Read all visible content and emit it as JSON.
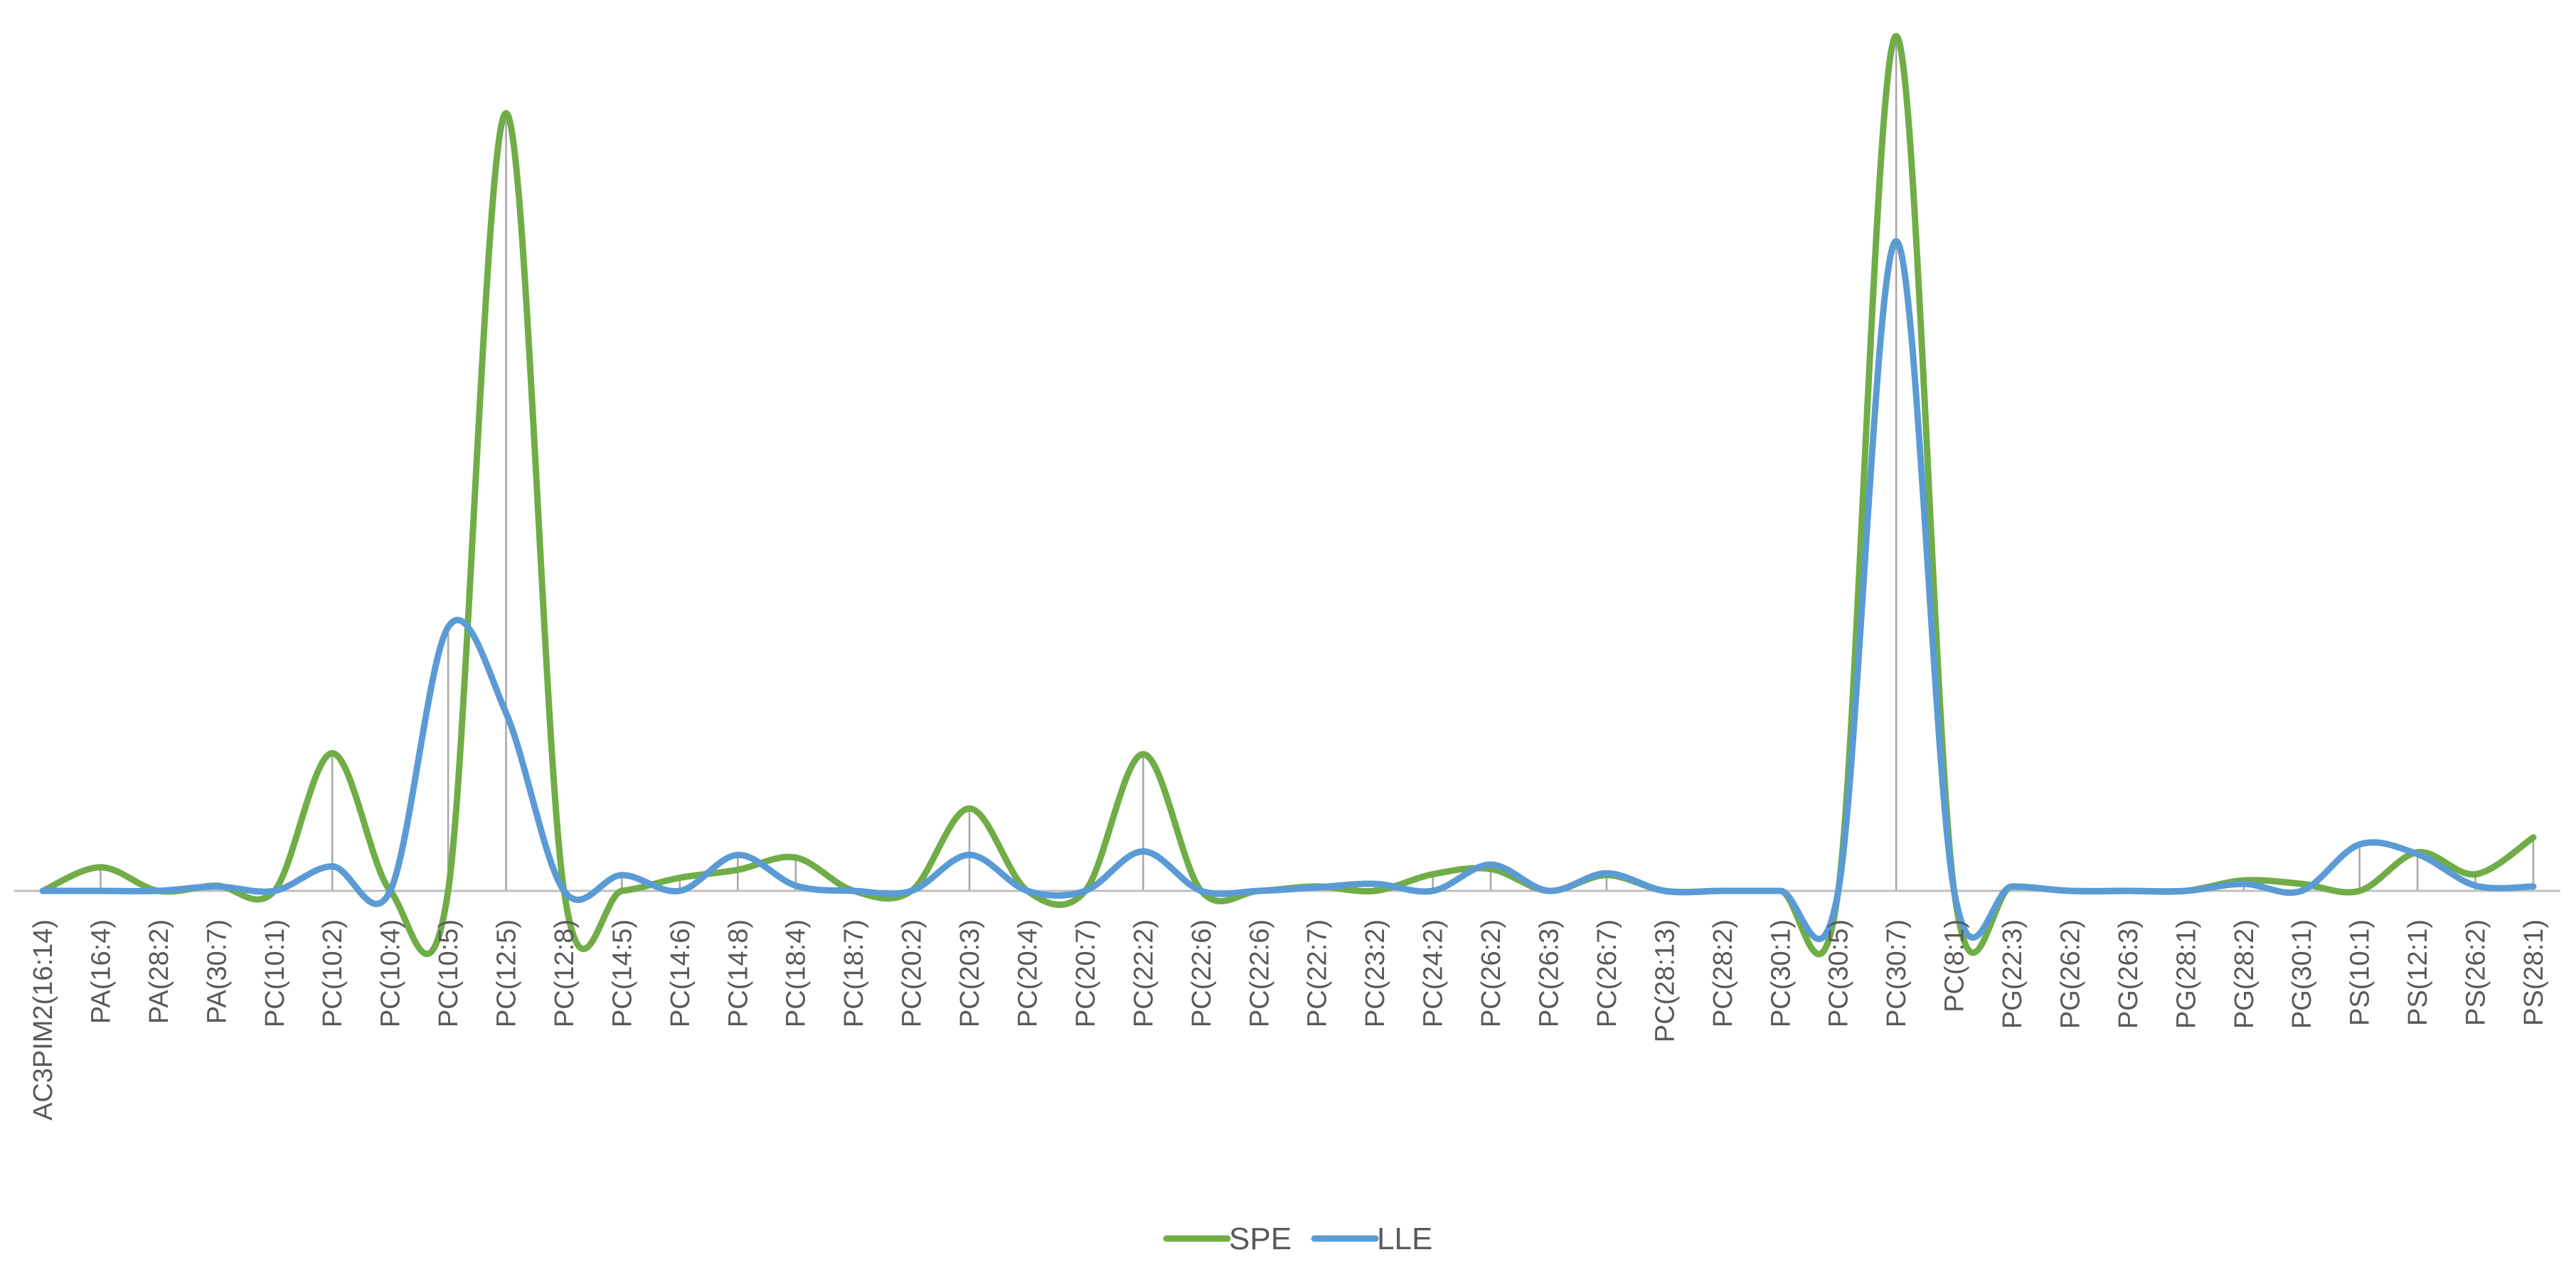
{
  "chart_data": {
    "type": "line",
    "smooth": true,
    "title": "",
    "xlabel": "",
    "ylabel": "",
    "grid": false,
    "legend_position": "bottom",
    "drop_lines": true,
    "categories": [
      "AC3PIM2(16:14)",
      "PA(16:4)",
      "PA(28:2)",
      "PA(30:7)",
      "PC(10:1)",
      "PC(10:2)",
      "PC(10:4)",
      "PC(10:5)",
      "PC(12:5)",
      "PC(12:8)",
      "PC(14:5)",
      "PC(14:6)",
      "PC(14:8)",
      "PC(18:4)",
      "PC(18:7)",
      "PC(20:2)",
      "PC(20:3)",
      "PC(20:4)",
      "PC(20:7)",
      "PC(22:2)",
      "PC(22:6)",
      "PC(22:6)",
      "PC(22:7)",
      "PC(23:2)",
      "PC(24:2)",
      "PC(26:2)",
      "PC(26:3)",
      "PC(26:7)",
      "PC(28:13)",
      "PC(28:2)",
      "PC(30:1)",
      "PC(30:5)",
      "PC(30:7)",
      "PC(8:1)",
      "PG(22:3)",
      "PG(26:2)",
      "PG(26:3)",
      "PG(28:1)",
      "PG(28:2)",
      "PG(30:1)",
      "PS(10:1)",
      "PS(12:1)",
      "PS(26:2)",
      "PS(28:1)"
    ],
    "ylim": [
      -1,
      100
    ],
    "series": [
      {
        "name": "SPE",
        "color": "#70ad47",
        "values": [
          0,
          2.7,
          0,
          0.6,
          0,
          15.7,
          0,
          0,
          88.7,
          0,
          0,
          1.5,
          2.4,
          3.8,
          0,
          0,
          9.4,
          0,
          0,
          15.6,
          0,
          0,
          0.5,
          0,
          1.9,
          2.5,
          0,
          1.8,
          0,
          0,
          0,
          0,
          97.5,
          0,
          0.5,
          0,
          0,
          0,
          1.2,
          0.8,
          0,
          4.4,
          1.9,
          6.1
        ]
      },
      {
        "name": "LLE",
        "color": "#5b9bd5",
        "values": [
          0,
          0,
          0,
          0.5,
          0,
          2.8,
          0,
          30.1,
          20.3,
          0,
          1.8,
          0,
          4.1,
          0.6,
          0,
          0,
          4.1,
          0,
          0,
          4.5,
          0,
          0,
          0.4,
          0.8,
          0,
          3,
          0,
          2,
          0,
          0,
          0,
          0,
          74.1,
          0,
          0.5,
          0,
          0,
          0,
          0.8,
          0,
          5.3,
          4.2,
          0.6,
          0.5
        ]
      }
    ]
  }
}
